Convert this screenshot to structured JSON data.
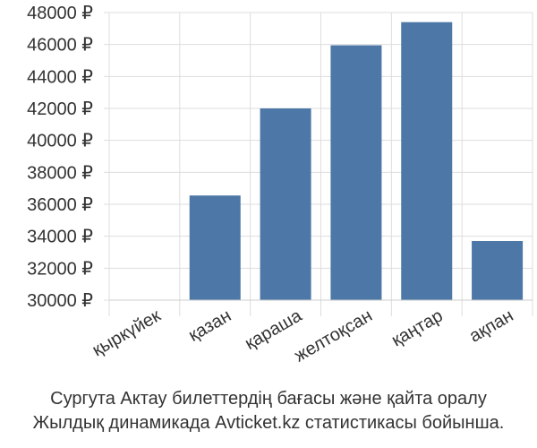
{
  "chart_data": {
    "type": "bar",
    "categories": [
      "қыркүйек",
      "қазан",
      "қараша",
      "желтоқсан",
      "қаңтар",
      "ақпан"
    ],
    "values": [
      null,
      36550,
      42000,
      45950,
      47400,
      33700
    ],
    "ylim": [
      30000,
      48000
    ],
    "yticks": [
      30000,
      32000,
      34000,
      36000,
      38000,
      40000,
      42000,
      44000,
      46000,
      48000
    ],
    "ytick_labels": [
      "30000 ₽",
      "32000 ₽",
      "34000 ₽",
      "36000 ₽",
      "38000 ₽",
      "40000 ₽",
      "42000 ₽",
      "44000 ₽",
      "46000 ₽",
      "48000 ₽"
    ],
    "bar_color": "#4c77a6",
    "grid": true,
    "grid_color": "#dddddd"
  },
  "caption": {
    "line1": "Сургута Актау билеттердің бағасы және қайта оралу",
    "line2": "Жылдық динамикада Avticket.kz статистикасы бойынша."
  }
}
